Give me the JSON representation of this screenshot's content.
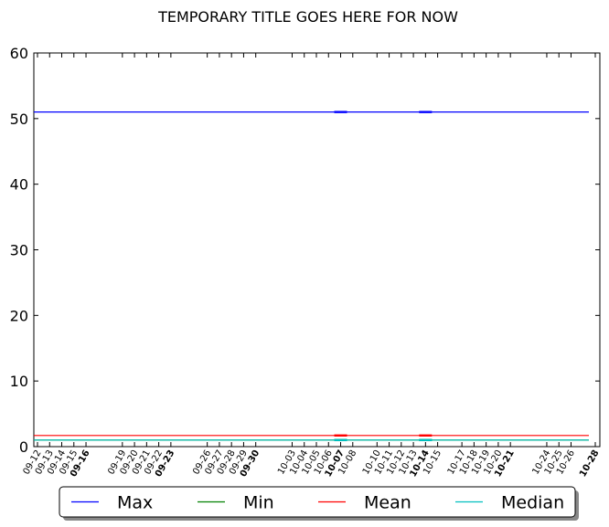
{
  "chart_data": {
    "type": "line",
    "title": "TEMPORARY TITLE GOES HERE FOR NOW",
    "xlabel": "",
    "ylabel": "",
    "ylim": [
      0,
      60
    ],
    "yticks": [
      0,
      10,
      20,
      30,
      40,
      50,
      60
    ],
    "grid": false,
    "legend": "bottom-center",
    "x": [
      "09-12",
      "09-13",
      "09-14",
      "09-15",
      "09-16",
      "09-19",
      "09-20",
      "09-21",
      "09-22",
      "09-23",
      "09-26",
      "09-27",
      "09-28",
      "09-29",
      "09-30",
      "10-03",
      "10-04",
      "10-05",
      "10-06",
      "10-07",
      "10-08",
      "10-10",
      "10-11",
      "10-12",
      "10-13",
      "10-14",
      "10-15",
      "10-17",
      "10-18",
      "10-19",
      "10-20",
      "10-21",
      "10-24",
      "10-25",
      "10-26"
    ],
    "bold_ticks": [
      "09-16",
      "09-23",
      "09-30",
      "10-07",
      "10-14",
      "10-21",
      "10-28"
    ],
    "extra_ticks": [
      "10-28"
    ],
    "series": [
      {
        "name": "Max",
        "color": "#0000ff",
        "value": 51
      },
      {
        "name": "Min",
        "color": "#008000",
        "value": 1
      },
      {
        "name": "Mean",
        "color": "#ff0000",
        "value": 1.7
      },
      {
        "name": "Median",
        "color": "#00bfbf",
        "value": 1
      }
    ],
    "markers": [
      "10-07",
      "10-14"
    ]
  }
}
